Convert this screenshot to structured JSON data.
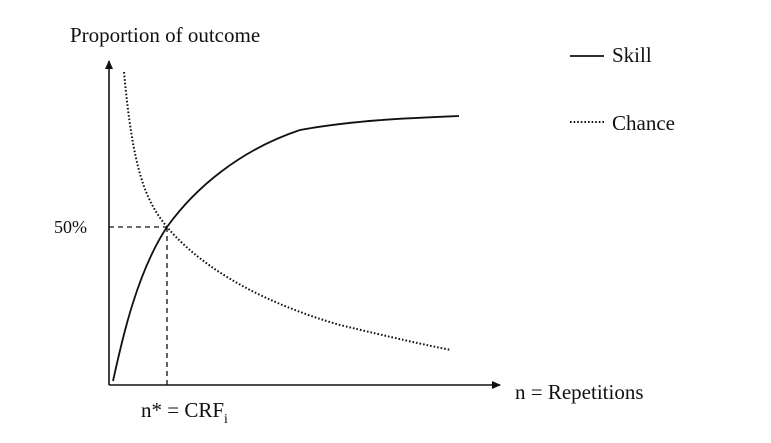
{
  "diagram": {
    "y_axis_label": "Proportion of outcome",
    "x_axis_label": "n = Repetitions",
    "y_marker_label": "50%",
    "x_marker_label": "n* = CRF",
    "x_marker_subscript": "i",
    "legend": [
      {
        "name": "Skill",
        "line_style": "solid"
      },
      {
        "name": "Chance",
        "line_style": "dotted"
      }
    ],
    "colors": {
      "ink": "#111111",
      "background": "#ffffff"
    }
  }
}
